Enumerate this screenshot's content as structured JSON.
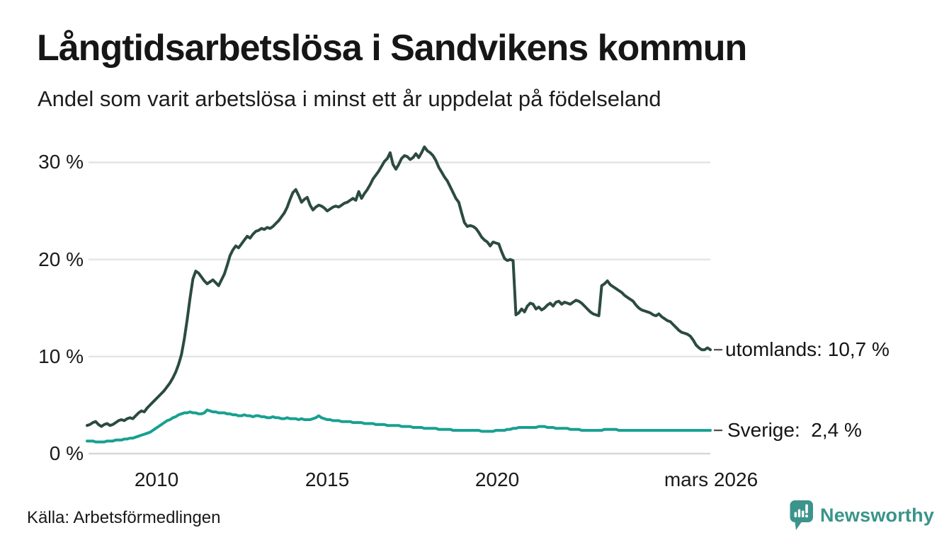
{
  "header": {
    "title": "Långtidsarbetslösa i Sandvikens kommun",
    "subtitle": "Andel som varit arbetslösa i minst ett år uppdelat på födelseland"
  },
  "chart_data": {
    "type": "line",
    "title": "Långtidsarbetslösa i Sandvikens kommun",
    "subtitle": "Andel som varit arbetslösa i minst ett år uppdelat på födelseland",
    "unit": "%",
    "x_start": "2008-01",
    "x_end": "2026-03",
    "x_interval": "monthly",
    "ylim": [
      0,
      33
    ],
    "grid": "horizontal",
    "legend_position": "right-of-line-end",
    "yticks": [
      "0 %",
      "10 %",
      "20 %",
      "30 %"
    ],
    "xticks": [
      "2010",
      "2015",
      "2020",
      "mars 2026"
    ],
    "series": [
      {
        "name": "utomlands",
        "label": "utomlands: 10,7 %",
        "last_value": 10.7,
        "color": "#2c4b40",
        "values": [
          2.9,
          3.0,
          3.2,
          3.3,
          3.0,
          2.8,
          3.0,
          3.1,
          2.9,
          3.0,
          3.2,
          3.4,
          3.5,
          3.4,
          3.6,
          3.7,
          3.6,
          3.9,
          4.2,
          4.4,
          4.3,
          4.7,
          5.0,
          5.3,
          5.6,
          5.9,
          6.2,
          6.5,
          6.9,
          7.3,
          7.8,
          8.4,
          9.2,
          10.2,
          11.8,
          13.8,
          16.0,
          18.0,
          18.8,
          18.6,
          18.2,
          17.8,
          17.5,
          17.7,
          17.9,
          17.6,
          17.3,
          17.9,
          18.5,
          19.4,
          20.4,
          21.0,
          21.4,
          21.2,
          21.6,
          22.0,
          22.4,
          22.2,
          22.6,
          22.9,
          23.0,
          23.2,
          23.1,
          23.3,
          23.2,
          23.4,
          23.7,
          24.0,
          24.4,
          24.8,
          25.4,
          26.2,
          26.9,
          27.2,
          26.6,
          25.9,
          26.2,
          26.4,
          25.6,
          25.1,
          25.4,
          25.6,
          25.5,
          25.3,
          25.0,
          25.2,
          25.4,
          25.5,
          25.4,
          25.6,
          25.8,
          25.9,
          26.1,
          26.3,
          26.1,
          27.0,
          26.3,
          26.8,
          27.2,
          27.7,
          28.3,
          28.7,
          29.1,
          29.6,
          30.1,
          30.4,
          31.0,
          29.8,
          29.3,
          29.8,
          30.4,
          30.7,
          30.6,
          30.3,
          30.5,
          30.9,
          30.5,
          31.0,
          31.6,
          31.2,
          31.0,
          30.7,
          30.2,
          29.5,
          29.0,
          28.5,
          28.1,
          27.5,
          26.9,
          26.3,
          25.9,
          24.8,
          23.8,
          23.4,
          23.5,
          23.4,
          23.2,
          22.8,
          22.3,
          22.0,
          21.8,
          21.4,
          21.8,
          21.7,
          21.6,
          20.8,
          20.1,
          19.9,
          20.0,
          19.9,
          14.3,
          14.5,
          14.9,
          14.6,
          15.2,
          15.5,
          15.4,
          14.9,
          15.1,
          14.8,
          15.0,
          15.3,
          15.5,
          15.2,
          15.6,
          15.7,
          15.4,
          15.6,
          15.5,
          15.4,
          15.6,
          15.8,
          15.7,
          15.5,
          15.2,
          14.9,
          14.6,
          14.4,
          14.3,
          14.2,
          17.3,
          17.5,
          17.8,
          17.4,
          17.2,
          17.0,
          16.8,
          16.6,
          16.3,
          16.1,
          15.9,
          15.7,
          15.3,
          15.0,
          14.8,
          14.7,
          14.6,
          14.5,
          14.3,
          14.2,
          14.4,
          14.1,
          13.9,
          13.7,
          13.6,
          13.3,
          13.0,
          12.7,
          12.5,
          12.4,
          12.3,
          12.1,
          11.7,
          11.2,
          10.9,
          10.7,
          10.7,
          10.9,
          10.7
        ]
      },
      {
        "name": "Sverige",
        "label": "Sverige:  2,4 %",
        "last_value": 2.4,
        "color": "#18a091",
        "values": [
          1.3,
          1.3,
          1.3,
          1.2,
          1.2,
          1.2,
          1.2,
          1.3,
          1.3,
          1.3,
          1.4,
          1.4,
          1.4,
          1.5,
          1.5,
          1.6,
          1.6,
          1.7,
          1.8,
          1.9,
          2.0,
          2.1,
          2.2,
          2.4,
          2.6,
          2.8,
          3.0,
          3.2,
          3.4,
          3.5,
          3.7,
          3.8,
          4.0,
          4.1,
          4.2,
          4.2,
          4.3,
          4.2,
          4.2,
          4.1,
          4.1,
          4.2,
          4.5,
          4.4,
          4.3,
          4.3,
          4.2,
          4.2,
          4.2,
          4.1,
          4.1,
          4.0,
          4.0,
          3.9,
          3.9,
          4.0,
          3.9,
          3.9,
          3.8,
          3.9,
          3.9,
          3.8,
          3.8,
          3.7,
          3.7,
          3.8,
          3.7,
          3.7,
          3.6,
          3.6,
          3.7,
          3.6,
          3.6,
          3.6,
          3.5,
          3.6,
          3.5,
          3.5,
          3.5,
          3.6,
          3.7,
          3.9,
          3.7,
          3.6,
          3.5,
          3.5,
          3.4,
          3.4,
          3.4,
          3.3,
          3.3,
          3.3,
          3.3,
          3.2,
          3.2,
          3.2,
          3.2,
          3.1,
          3.1,
          3.1,
          3.1,
          3.0,
          3.0,
          3.0,
          3.0,
          2.9,
          2.9,
          2.9,
          2.9,
          2.9,
          2.8,
          2.8,
          2.8,
          2.8,
          2.7,
          2.7,
          2.7,
          2.7,
          2.6,
          2.6,
          2.6,
          2.6,
          2.6,
          2.5,
          2.5,
          2.5,
          2.5,
          2.5,
          2.4,
          2.4,
          2.4,
          2.4,
          2.4,
          2.4,
          2.4,
          2.4,
          2.4,
          2.4,
          2.3,
          2.3,
          2.3,
          2.3,
          2.3,
          2.4,
          2.4,
          2.4,
          2.4,
          2.5,
          2.5,
          2.6,
          2.6,
          2.7,
          2.7,
          2.7,
          2.7,
          2.7,
          2.7,
          2.7,
          2.8,
          2.8,
          2.8,
          2.7,
          2.7,
          2.7,
          2.6,
          2.6,
          2.6,
          2.6,
          2.6,
          2.5,
          2.5,
          2.5,
          2.5,
          2.4,
          2.4,
          2.4,
          2.4,
          2.4,
          2.4,
          2.4,
          2.4,
          2.5,
          2.5,
          2.5,
          2.5,
          2.5,
          2.4,
          2.4,
          2.4,
          2.4,
          2.4,
          2.4,
          2.4,
          2.4,
          2.4,
          2.4,
          2.4,
          2.4,
          2.4,
          2.4,
          2.4,
          2.4,
          2.4,
          2.4,
          2.4,
          2.4,
          2.4,
          2.4,
          2.4,
          2.4,
          2.4,
          2.4,
          2.4,
          2.4,
          2.4,
          2.4,
          2.4,
          2.4,
          2.4
        ]
      }
    ]
  },
  "footer": {
    "source": "Källa: Arbetsförmedlingen",
    "brand": "Newsworthy"
  },
  "colors": {
    "utomlands_line": "#2c4b40",
    "sverige_line": "#18a091",
    "brand_teal": "#3b948a",
    "gridline": "#e4e4e4",
    "zero_line": "#d8d8d8"
  }
}
